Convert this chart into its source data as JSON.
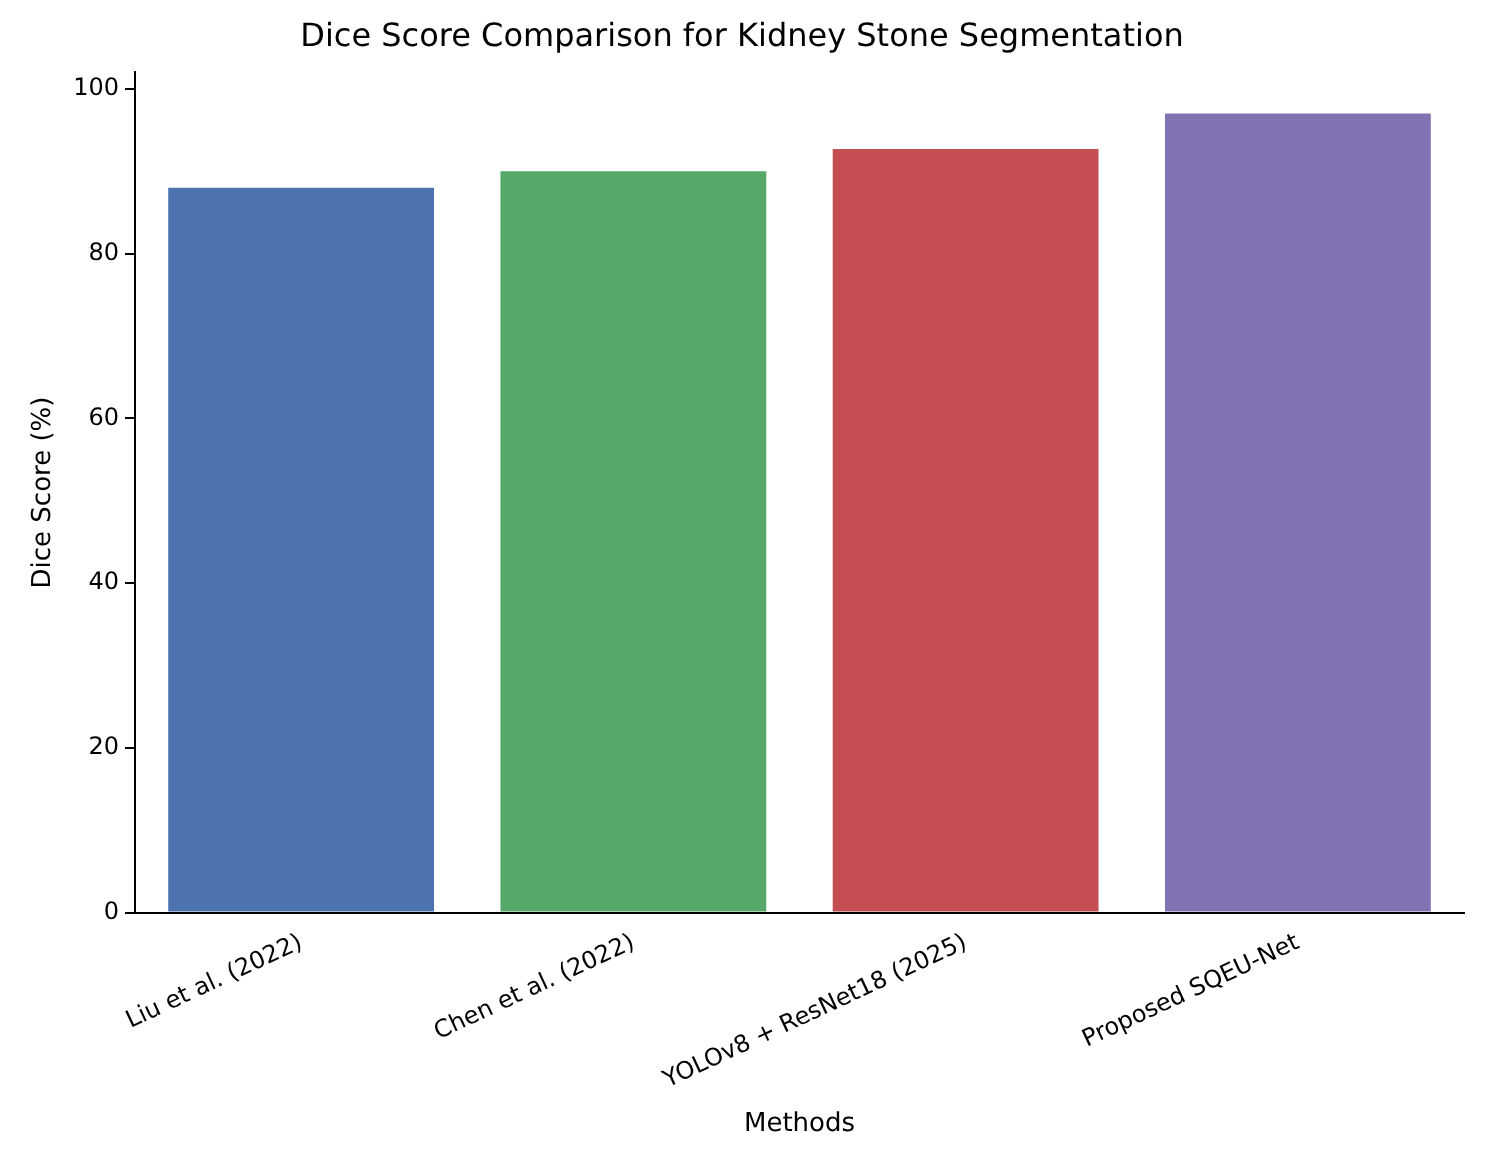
{
  "chart_data": {
    "type": "bar",
    "title": "Dice Score Comparison for Kidney Stone Segmentation",
    "xlabel": "Methods",
    "ylabel": "Dice Score (%)",
    "categories": [
      "Liu et al. (2022)",
      "Chen et al. (2022)",
      "YOLOv8 + ResNet18 (2025)",
      "Proposed SQEU-Net"
    ],
    "values": [
      88,
      90,
      92.7,
      97
    ],
    "colors": [
      "#4c72b0",
      "#55a868",
      "#c44e52",
      "#8172b2"
    ],
    "ylim": [
      0,
      102
    ],
    "yticks": [
      0,
      20,
      40,
      60,
      80,
      100
    ],
    "grid": false
  }
}
